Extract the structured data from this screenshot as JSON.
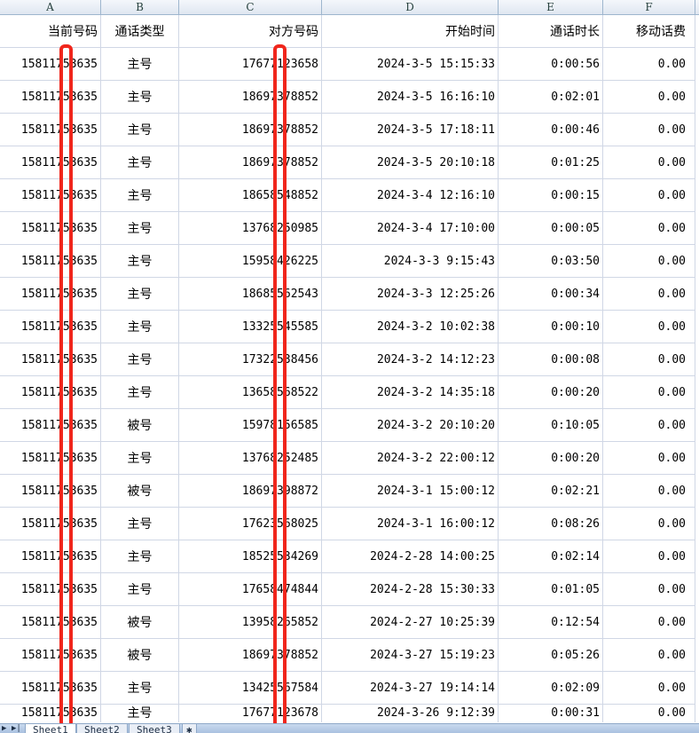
{
  "column_letters": [
    "A",
    "B",
    "C",
    "D",
    "E",
    "F"
  ],
  "headers": [
    "当前号码",
    "通话类型",
    "对方号码",
    "开始时间",
    "通话时长",
    "移动话费"
  ],
  "rows": [
    [
      "15811753635",
      "主号",
      "17677123658",
      "2024-3-5 15:15:33",
      "0:00:56",
      "0.00"
    ],
    [
      "15811753635",
      "主号",
      "18697378852",
      "2024-3-5 16:16:10",
      "0:02:01",
      "0.00"
    ],
    [
      "15811753635",
      "主号",
      "18697378852",
      "2024-3-5 17:18:11",
      "0:00:46",
      "0.00"
    ],
    [
      "15811753635",
      "主号",
      "18697378852",
      "2024-3-5 20:10:18",
      "0:01:25",
      "0.00"
    ],
    [
      "15811753635",
      "主号",
      "18658548852",
      "2024-3-4 12:16:10",
      "0:00:15",
      "0.00"
    ],
    [
      "15811753635",
      "主号",
      "13768250985",
      "2024-3-4 17:10:00",
      "0:00:05",
      "0.00"
    ],
    [
      "15811753635",
      "主号",
      "15958426225",
      "2024-3-3 9:15:43",
      "0:03:50",
      "0.00"
    ],
    [
      "15811753635",
      "主号",
      "18685562543",
      "2024-3-3 12:25:26",
      "0:00:34",
      "0.00"
    ],
    [
      "15811753635",
      "主号",
      "13325545585",
      "2024-3-2 10:02:38",
      "0:00:10",
      "0.00"
    ],
    [
      "15811753635",
      "主号",
      "17322538456",
      "2024-3-2 14:12:23",
      "0:00:08",
      "0.00"
    ],
    [
      "15811753635",
      "主号",
      "13658568522",
      "2024-3-2 14:35:18",
      "0:00:20",
      "0.00"
    ],
    [
      "15811753635",
      "被号",
      "15978156585",
      "2024-3-2 20:10:20",
      "0:10:05",
      "0.00"
    ],
    [
      "15811753635",
      "主号",
      "13768252485",
      "2024-3-2 22:00:12",
      "0:00:20",
      "0.00"
    ],
    [
      "15811753635",
      "被号",
      "18697398872",
      "2024-3-1 15:00:12",
      "0:02:21",
      "0.00"
    ],
    [
      "15811753635",
      "主号",
      "17623568025",
      "2024-3-1 16:00:12",
      "0:08:26",
      "0.00"
    ],
    [
      "15811753635",
      "主号",
      "18525534269",
      "2024-2-28 14:00:25",
      "0:02:14",
      "0.00"
    ],
    [
      "15811753635",
      "主号",
      "17658474844",
      "2024-2-28 15:30:33",
      "0:01:05",
      "0.00"
    ],
    [
      "15811753635",
      "被号",
      "13958265852",
      "2024-2-27 10:25:39",
      "0:12:54",
      "0.00"
    ],
    [
      "15811753635",
      "被号",
      "18697378852",
      "2024-3-27 15:19:23",
      "0:05:26",
      "0.00"
    ],
    [
      "15811753635",
      "主号",
      "13425567584",
      "2024-3-27 19:14:14",
      "0:02:09",
      "0.00"
    ],
    [
      "15811753635",
      "主号",
      "17677123678",
      "2024-3-26 9:12:39",
      "0:00:31",
      "0.00"
    ]
  ],
  "sheet_tabs": [
    "Sheet1",
    "Sheet2",
    "Sheet3"
  ],
  "active_sheet": "Sheet1",
  "redaction_color": "#f0261c"
}
